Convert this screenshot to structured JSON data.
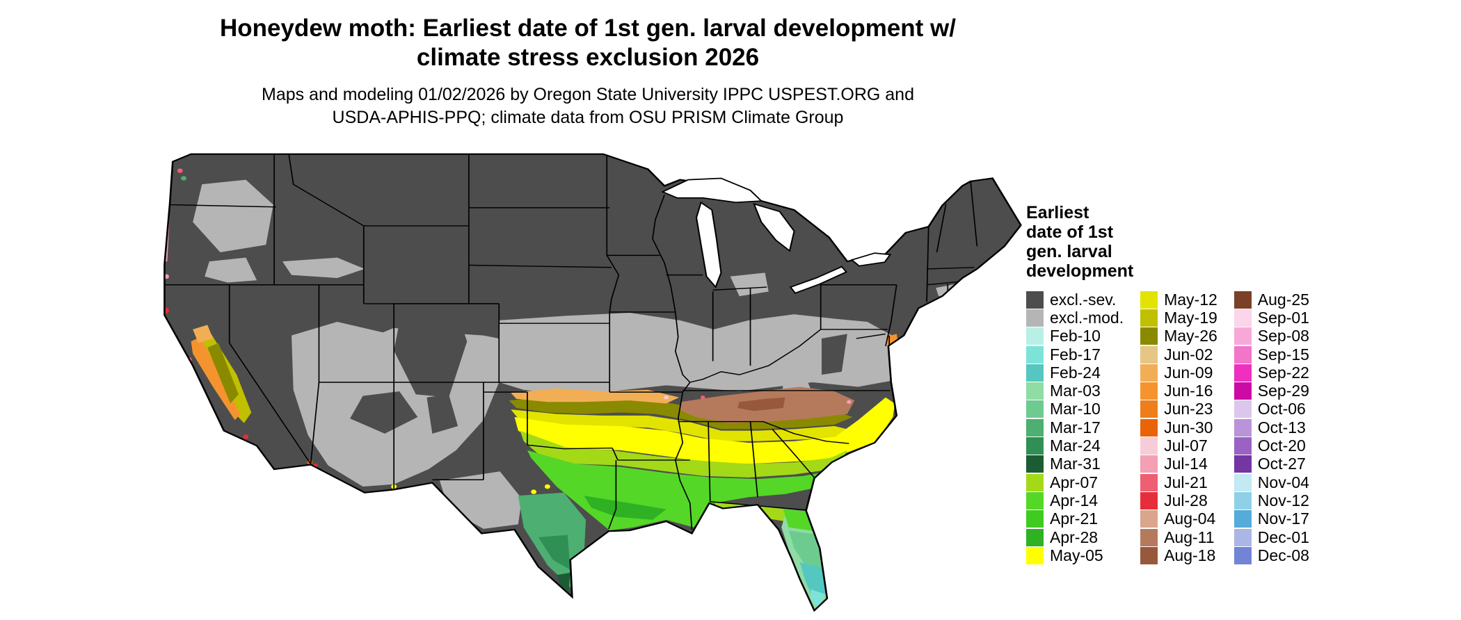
{
  "title": {
    "line1": "Honeydew moth: Earliest date of 1st gen. larval development w/",
    "line2": "climate stress exclusion 2026"
  },
  "subtitle": {
    "line1": "Maps and modeling 01/02/2026 by Oregon State University IPPC USPEST.ORG and",
    "line2": "USDA-APHIS-PPQ; climate data from OSU PRISM Climate Group"
  },
  "legend": {
    "title_lines": [
      "Earliest",
      "date of 1st",
      "gen. larval",
      "development"
    ],
    "columns": [
      [
        {
          "label": "excl.-sev.",
          "color": "#4d4d4d"
        },
        {
          "label": "excl.-mod.",
          "color": "#b5b5b5"
        },
        {
          "label": "Feb-10",
          "color": "#b9f0e6"
        },
        {
          "label": "Feb-17",
          "color": "#7de3d8"
        },
        {
          "label": "Feb-24",
          "color": "#55c7c1"
        },
        {
          "label": "Mar-03",
          "color": "#8fdca5"
        },
        {
          "label": "Mar-10",
          "color": "#6ecb90"
        },
        {
          "label": "Mar-17",
          "color": "#4daf72"
        },
        {
          "label": "Mar-24",
          "color": "#2f8f55"
        },
        {
          "label": "Mar-31",
          "color": "#1c5c34"
        },
        {
          "label": "Apr-07",
          "color": "#a4d918"
        },
        {
          "label": "Apr-14",
          "color": "#55d727"
        },
        {
          "label": "Apr-21",
          "color": "#3fcb1f"
        },
        {
          "label": "Apr-28",
          "color": "#2eb224"
        },
        {
          "label": "May-05",
          "color": "#ffff00"
        }
      ],
      [
        {
          "label": "May-12",
          "color": "#e3e300"
        },
        {
          "label": "May-19",
          "color": "#c0c000"
        },
        {
          "label": "May-26",
          "color": "#8a8a00"
        },
        {
          "label": "Jun-02",
          "color": "#e6c685"
        },
        {
          "label": "Jun-09",
          "color": "#f2ae55"
        },
        {
          "label": "Jun-16",
          "color": "#f5942e"
        },
        {
          "label": "Jun-23",
          "color": "#ef7d1a"
        },
        {
          "label": "Jun-30",
          "color": "#ea6308"
        },
        {
          "label": "Jul-07",
          "color": "#f7ccd9"
        },
        {
          "label": "Jul-14",
          "color": "#f49fb4"
        },
        {
          "label": "Jul-21",
          "color": "#ee5f72"
        },
        {
          "label": "Jul-28",
          "color": "#e62e3a"
        },
        {
          "label": "Aug-04",
          "color": "#d9a58c"
        },
        {
          "label": "Aug-11",
          "color": "#b57a5c"
        },
        {
          "label": "Aug-18",
          "color": "#98583c"
        }
      ],
      [
        {
          "label": "Aug-25",
          "color": "#7a4028"
        },
        {
          "label": "Sep-01",
          "color": "#fbd5e9"
        },
        {
          "label": "Sep-08",
          "color": "#f7a8d8"
        },
        {
          "label": "Sep-15",
          "color": "#f275c9"
        },
        {
          "label": "Sep-22",
          "color": "#ee2fc0"
        },
        {
          "label": "Sep-29",
          "color": "#cc0aa4"
        },
        {
          "label": "Oct-06",
          "color": "#ddc6ec"
        },
        {
          "label": "Oct-13",
          "color": "#bb93d9"
        },
        {
          "label": "Oct-20",
          "color": "#9a63c3"
        },
        {
          "label": "Oct-27",
          "color": "#7436a3"
        },
        {
          "label": "Nov-04",
          "color": "#c3e9f2"
        },
        {
          "label": "Nov-12",
          "color": "#8fd0e8"
        },
        {
          "label": "Nov-17",
          "color": "#55abd9"
        },
        {
          "label": "Dec-01",
          "color": "#a9b6e6"
        },
        {
          "label": "Dec-08",
          "color": "#7284d6"
        }
      ]
    ]
  },
  "colors": {
    "excl_sev": "#4d4d4d",
    "excl_mod": "#b5b5b5",
    "lake": "#ffffff",
    "feb17": "#7de3d8",
    "feb24": "#55c7c1",
    "mar03": "#8fdca5",
    "mar10": "#6ecb90",
    "mar17": "#4daf72",
    "mar24": "#2f8f55",
    "mar31": "#1c5c34",
    "apr07": "#a4d918",
    "apr14": "#55d727",
    "apr21": "#3fcb1f",
    "apr28": "#2eb224",
    "may05": "#ffff00",
    "may12": "#e3e300",
    "may19": "#c0c000",
    "may26": "#8a8a00",
    "jun09": "#f2ae55",
    "jun16": "#f5942e",
    "jun30": "#ea6308",
    "jul07": "#f7ccd9",
    "jul14": "#f49fb4",
    "jul21": "#ee5f72",
    "jul28": "#e62e3a",
    "aug11": "#b57a5c",
    "aug18": "#98583c"
  }
}
